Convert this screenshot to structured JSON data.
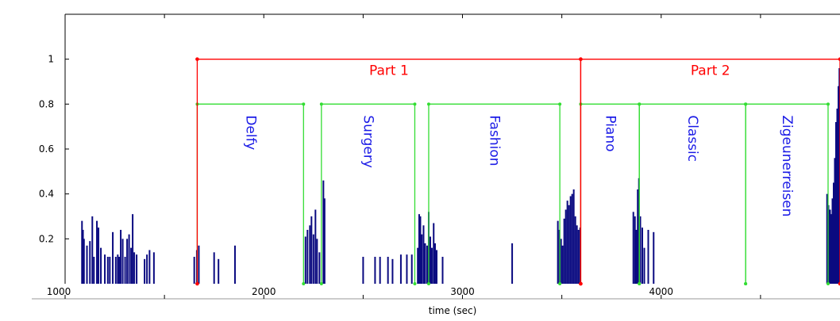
{
  "chart_data": {
    "type": "bar",
    "xlabel": "time (sec)",
    "ylabel": "",
    "title": "",
    "xlim": [
      1000,
      4900
    ],
    "ylim": [
      0,
      1.2
    ],
    "x_ticks": [
      "1000",
      "2000",
      "3000",
      "4000"
    ],
    "y_ticks": [
      "0.2",
      "0.4",
      "0.6",
      "0.8",
      "1"
    ],
    "grid": false,
    "bar_color": "#0a0a80",
    "bars": [
      {
        "x": 1085,
        "y": 0.28
      },
      {
        "x": 1090,
        "y": 0.24
      },
      {
        "x": 1095,
        "y": 0.2
      },
      {
        "x": 1110,
        "y": 0.17
      },
      {
        "x": 1125,
        "y": 0.19
      },
      {
        "x": 1137,
        "y": 0.3
      },
      {
        "x": 1145,
        "y": 0.12
      },
      {
        "x": 1160,
        "y": 0.28
      },
      {
        "x": 1168,
        "y": 0.25
      },
      {
        "x": 1180,
        "y": 0.16
      },
      {
        "x": 1200,
        "y": 0.13
      },
      {
        "x": 1215,
        "y": 0.12
      },
      {
        "x": 1225,
        "y": 0.12
      },
      {
        "x": 1240,
        "y": 0.23
      },
      {
        "x": 1255,
        "y": 0.12
      },
      {
        "x": 1265,
        "y": 0.13
      },
      {
        "x": 1272,
        "y": 0.12
      },
      {
        "x": 1280,
        "y": 0.24
      },
      {
        "x": 1290,
        "y": 0.2
      },
      {
        "x": 1302,
        "y": 0.12
      },
      {
        "x": 1312,
        "y": 0.2
      },
      {
        "x": 1322,
        "y": 0.22
      },
      {
        "x": 1332,
        "y": 0.16
      },
      {
        "x": 1340,
        "y": 0.31
      },
      {
        "x": 1348,
        "y": 0.14
      },
      {
        "x": 1360,
        "y": 0.13
      },
      {
        "x": 1400,
        "y": 0.11
      },
      {
        "x": 1412,
        "y": 0.13
      },
      {
        "x": 1425,
        "y": 0.15
      },
      {
        "x": 1447,
        "y": 0.14
      },
      {
        "x": 1650,
        "y": 0.12
      },
      {
        "x": 1663,
        "y": 0.15
      },
      {
        "x": 1673,
        "y": 0.17
      },
      {
        "x": 1750,
        "y": 0.14
      },
      {
        "x": 1772,
        "y": 0.11
      },
      {
        "x": 1855,
        "y": 0.17
      },
      {
        "x": 2210,
        "y": 0.21
      },
      {
        "x": 2220,
        "y": 0.24
      },
      {
        "x": 2232,
        "y": 0.26
      },
      {
        "x": 2240,
        "y": 0.3
      },
      {
        "x": 2250,
        "y": 0.22
      },
      {
        "x": 2260,
        "y": 0.33
      },
      {
        "x": 2268,
        "y": 0.2
      },
      {
        "x": 2280,
        "y": 0.14
      },
      {
        "x": 2300,
        "y": 0.46
      },
      {
        "x": 2306,
        "y": 0.38
      },
      {
        "x": 2500,
        "y": 0.12
      },
      {
        "x": 2560,
        "y": 0.12
      },
      {
        "x": 2585,
        "y": 0.12
      },
      {
        "x": 2625,
        "y": 0.12
      },
      {
        "x": 2648,
        "y": 0.11
      },
      {
        "x": 2690,
        "y": 0.13
      },
      {
        "x": 2720,
        "y": 0.13
      },
      {
        "x": 2745,
        "y": 0.13
      },
      {
        "x": 2775,
        "y": 0.16
      },
      {
        "x": 2782,
        "y": 0.31
      },
      {
        "x": 2788,
        "y": 0.3
      },
      {
        "x": 2795,
        "y": 0.22
      },
      {
        "x": 2804,
        "y": 0.26
      },
      {
        "x": 2812,
        "y": 0.18
      },
      {
        "x": 2822,
        "y": 0.17
      },
      {
        "x": 2830,
        "y": 0.32
      },
      {
        "x": 2838,
        "y": 0.21
      },
      {
        "x": 2846,
        "y": 0.16
      },
      {
        "x": 2855,
        "y": 0.27
      },
      {
        "x": 2862,
        "y": 0.18
      },
      {
        "x": 2870,
        "y": 0.15
      },
      {
        "x": 2900,
        "y": 0.12
      },
      {
        "x": 3250,
        "y": 0.18
      },
      {
        "x": 3480,
        "y": 0.28
      },
      {
        "x": 3488,
        "y": 0.24
      },
      {
        "x": 3496,
        "y": 0.2
      },
      {
        "x": 3504,
        "y": 0.17
      },
      {
        "x": 3512,
        "y": 0.29
      },
      {
        "x": 3520,
        "y": 0.33
      },
      {
        "x": 3528,
        "y": 0.37
      },
      {
        "x": 3536,
        "y": 0.35
      },
      {
        "x": 3544,
        "y": 0.39
      },
      {
        "x": 3552,
        "y": 0.4
      },
      {
        "x": 3560,
        "y": 0.42
      },
      {
        "x": 3568,
        "y": 0.3
      },
      {
        "x": 3576,
        "y": 0.26
      },
      {
        "x": 3584,
        "y": 0.24
      },
      {
        "x": 3592,
        "y": 0.25
      },
      {
        "x": 3860,
        "y": 0.32
      },
      {
        "x": 3868,
        "y": 0.3
      },
      {
        "x": 3875,
        "y": 0.24
      },
      {
        "x": 3882,
        "y": 0.42
      },
      {
        "x": 3888,
        "y": 0.47
      },
      {
        "x": 3895,
        "y": 0.3
      },
      {
        "x": 3905,
        "y": 0.25
      },
      {
        "x": 3915,
        "y": 0.16
      },
      {
        "x": 3935,
        "y": 0.24
      },
      {
        "x": 3962,
        "y": 0.23
      },
      {
        "x": 4835,
        "y": 0.4
      },
      {
        "x": 4842,
        "y": 0.35
      },
      {
        "x": 4850,
        "y": 0.33
      },
      {
        "x": 4856,
        "y": 0.31
      },
      {
        "x": 4862,
        "y": 0.38
      },
      {
        "x": 4868,
        "y": 0.45
      },
      {
        "x": 4874,
        "y": 0.56
      },
      {
        "x": 4880,
        "y": 0.72
      },
      {
        "x": 4886,
        "y": 0.78
      },
      {
        "x": 4892,
        "y": 0.88
      },
      {
        "x": 4897,
        "y": 0.96
      }
    ],
    "parts": {
      "color": "#ff0000",
      "y": 1.0,
      "items": [
        {
          "label": "Part 1",
          "start": 1665,
          "end": 3595
        },
        {
          "label": "Part 2",
          "start": 3595,
          "end": 4900
        }
      ]
    },
    "sections": {
      "color": "#33dd33",
      "text_color": "#1a1ae6",
      "y": 0.8,
      "items": [
        {
          "label": "Delfy",
          "start": 1665,
          "end": 2200
        },
        {
          "label": "Surgery",
          "start": 2290,
          "end": 2760
        },
        {
          "label": "Fashion",
          "start": 2830,
          "end": 3490
        },
        {
          "label": "Piano",
          "start": 3595,
          "end": 3890
        },
        {
          "label": "Classic",
          "start": 3890,
          "end": 4425
        },
        {
          "label": "Zigeunerreisen",
          "start": 4425,
          "end": 4840
        }
      ]
    }
  }
}
